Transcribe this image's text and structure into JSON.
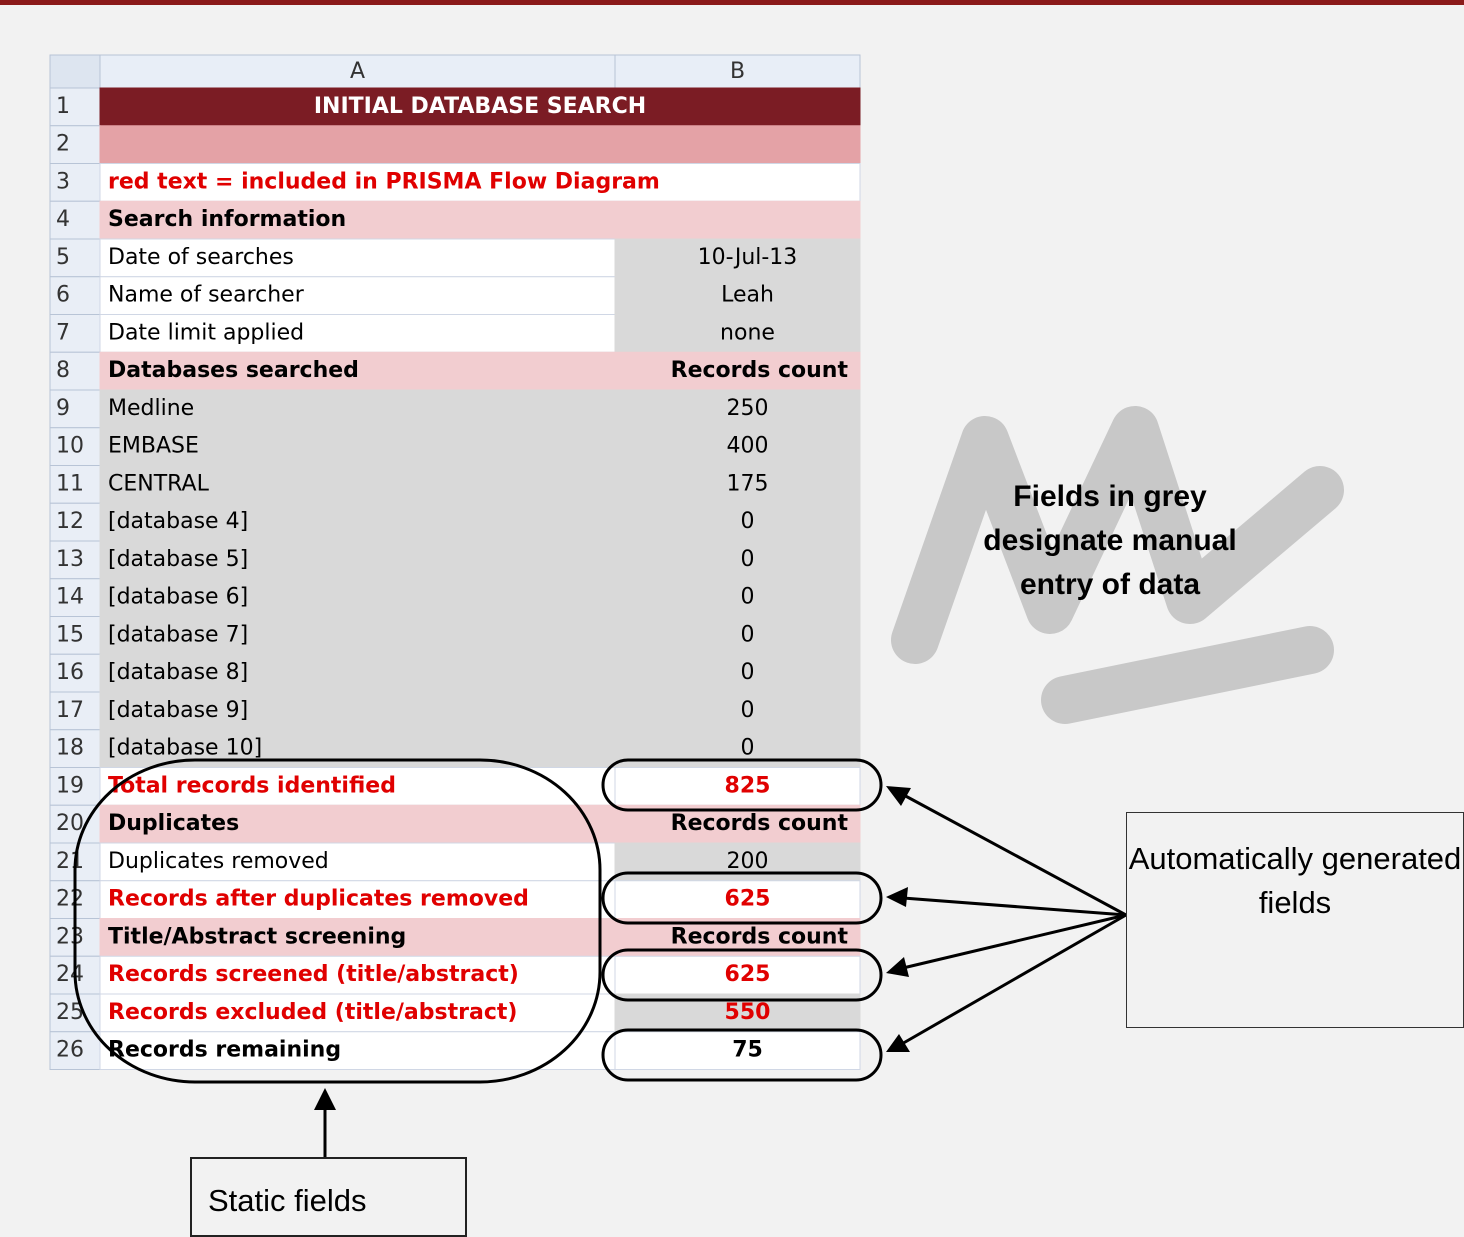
{
  "sheet": {
    "columns": [
      "A",
      "B"
    ],
    "rows": [
      {
        "number": 1,
        "a": "INITIAL DATABASE SEARCH"
      },
      {
        "number": 2
      },
      {
        "number": 3,
        "a": "red text = included in PRISMA Flow Diagram"
      },
      {
        "number": 4,
        "a": "Search information"
      },
      {
        "number": 5,
        "a": "Date of searches",
        "b": "10-Jul-13"
      },
      {
        "number": 6,
        "a": "Name of searcher",
        "b": "Leah"
      },
      {
        "number": 7,
        "a": "Date limit applied",
        "b": "none"
      },
      {
        "number": 8,
        "a": "Databases searched",
        "b": "Records count"
      },
      {
        "number": 9,
        "a": "Medline",
        "b": 250
      },
      {
        "number": 10,
        "a": "EMBASE",
        "b": 400
      },
      {
        "number": 11,
        "a": "CENTRAL",
        "b": 175
      },
      {
        "number": 12,
        "a": "[database 4]",
        "b": 0
      },
      {
        "number": 13,
        "a": "[database 5]",
        "b": 0
      },
      {
        "number": 14,
        "a": "[database 6]",
        "b": 0
      },
      {
        "number": 15,
        "a": "[database 7]",
        "b": 0
      },
      {
        "number": 16,
        "a": "[database 8]",
        "b": 0
      },
      {
        "number": 17,
        "a": "[database 9]",
        "b": 0
      },
      {
        "number": 18,
        "a": "[database 10]",
        "b": 0
      },
      {
        "number": 19,
        "a": "Total records identified",
        "b": 825
      },
      {
        "number": 20,
        "a": "Duplicates",
        "b": "Records count"
      },
      {
        "number": 21,
        "a": "Duplicates removed",
        "b": 200
      },
      {
        "number": 22,
        "a": "Records after duplicates removed",
        "b": 625
      },
      {
        "number": 23,
        "a": "Title/Abstract screening",
        "b": "Records count"
      },
      {
        "number": 24,
        "a": "Records screened (title/abstract)",
        "b": 625
      },
      {
        "number": 25,
        "a": "Records excluded (title/abstract)",
        "b": 550
      },
      {
        "number": 26,
        "a": "Records remaining",
        "b": 75
      }
    ]
  },
  "annotations": {
    "manual_note": "Fields in grey designate manual entry of data",
    "auto_note": "Automatically generated fields",
    "static_note": "Static fields"
  }
}
